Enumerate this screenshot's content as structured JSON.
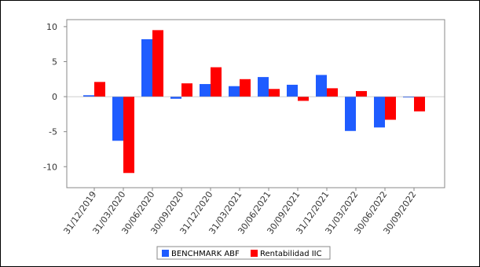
{
  "chart_data": {
    "type": "bar",
    "categories": [
      "31/12/2019",
      "31/03/2020",
      "30/06/2020",
      "30/09/2020",
      "31/12/2020",
      "31/03/2021",
      "30/06/2021",
      "30/09/2021",
      "31/12/2021",
      "31/03/2022",
      "30/06/2022",
      "30/09/2022"
    ],
    "series": [
      {
        "name": "BENCHMARK ABF",
        "color": "#1f5cff",
        "values": [
          0.2,
          -6.3,
          8.2,
          -0.3,
          1.8,
          1.5,
          2.8,
          1.7,
          3.1,
          -4.9,
          -4.4,
          -0.1
        ]
      },
      {
        "name": "Rentabilidad IIC",
        "color": "#ff0000",
        "values": [
          2.1,
          -10.9,
          9.5,
          1.9,
          4.2,
          2.5,
          1.1,
          -0.6,
          1.2,
          0.8,
          -3.3,
          -2.1
        ]
      }
    ],
    "yticks": [
      10,
      5,
      0,
      -5,
      -10
    ],
    "ylim": [
      -13,
      11
    ],
    "legend_position": "bottom",
    "grid": false
  }
}
